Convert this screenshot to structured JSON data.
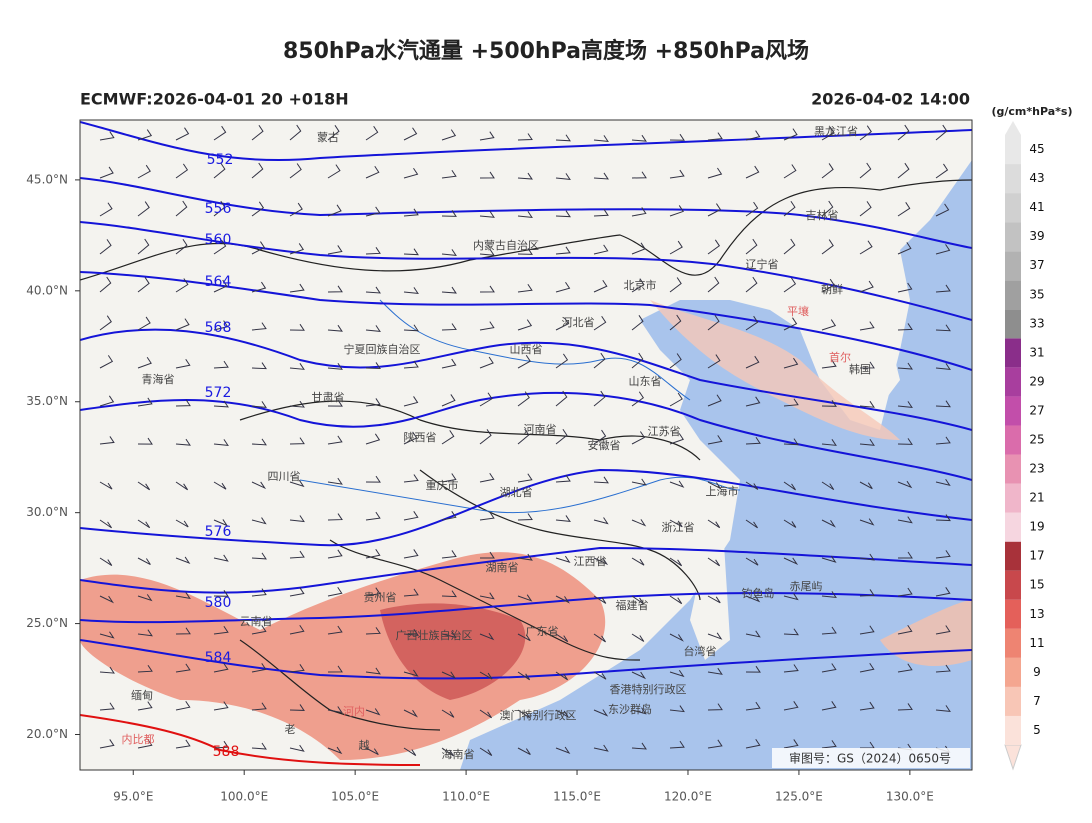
{
  "header": {
    "title": "850hPa水汽通量 +500hPa高度场 +850hPa风场",
    "left": "ECMWF:2026-04-01 20 +018H",
    "right": "2026-04-02 14:00"
  },
  "map": {
    "lonlim": [
      92.6,
      132.8
    ],
    "latlim": [
      18.4,
      47.7
    ],
    "lon_ticks": [
      {
        "value": 95,
        "label": "95.0°E"
      },
      {
        "value": 100,
        "label": "100.0°E"
      },
      {
        "value": 105,
        "label": "105.0°E"
      },
      {
        "value": 110,
        "label": "110.0°E"
      },
      {
        "value": 115,
        "label": "115.0°E"
      },
      {
        "value": 120,
        "label": "120.0°E"
      },
      {
        "value": 125,
        "label": "125.0°E"
      },
      {
        "value": 130,
        "label": "130.0°E"
      }
    ],
    "lat_ticks": [
      {
        "value": 20,
        "label": "20.0°N"
      },
      {
        "value": 25,
        "label": "25.0°N"
      },
      {
        "value": 30,
        "label": "30.0°N"
      },
      {
        "value": 35,
        "label": "35.0°N"
      },
      {
        "value": 40,
        "label": "40.0°N"
      },
      {
        "value": 45,
        "label": "45.0°N"
      }
    ],
    "contours": [
      552,
      556,
      560,
      564,
      568,
      572,
      576,
      580,
      584,
      588
    ],
    "places": [
      "蒙古",
      "黑龙江省",
      "吉林省",
      "内蒙古自治区",
      "辽宁省",
      "北京市",
      "朝鲜",
      "平壤",
      "首尔",
      "韩国",
      "河北省",
      "山西省",
      "宁夏回族自治区",
      "山东省",
      "青海省",
      "甘肃省",
      "陕西省",
      "河南省",
      "安徽省",
      "江苏省",
      "上海市",
      "四川省",
      "重庆市",
      "湖北省",
      "浙江省",
      "湖南省",
      "江西省",
      "钓鱼岛",
      "赤尾屿",
      "贵州省",
      "福建省",
      "云南省",
      "广西壮族自治区",
      "广东省",
      "台湾省",
      "缅甸",
      "香港特别行政区",
      "河内",
      "澳门特别行政区",
      "东沙群岛",
      "内比都",
      "老",
      "越",
      "海南省"
    ],
    "stamp": "审图号：GS（2024）0650号"
  },
  "colorbar": {
    "unit": "(g/cm*hPa*s)",
    "ticks": [
      5,
      7,
      9,
      11,
      13,
      15,
      17,
      19,
      21,
      23,
      25,
      27,
      29,
      31,
      33,
      35,
      37,
      39,
      41,
      43,
      45
    ],
    "colors": [
      "#fbe2da",
      "#f8c6b6",
      "#f4a690",
      "#ee8472",
      "#e4605a",
      "#c8484c",
      "#a8323a",
      "#f6d6e0",
      "#f0b6ca",
      "#e892b2",
      "#da6cab",
      "#c24eaa",
      "#a83e9e",
      "#8a2e8a",
      "#8e8e8e",
      "#a0a0a0",
      "#b2b2b2",
      "#c2c2c2",
      "#d0d0d0",
      "#dcdcdc",
      "#e8e8e8"
    ]
  }
}
